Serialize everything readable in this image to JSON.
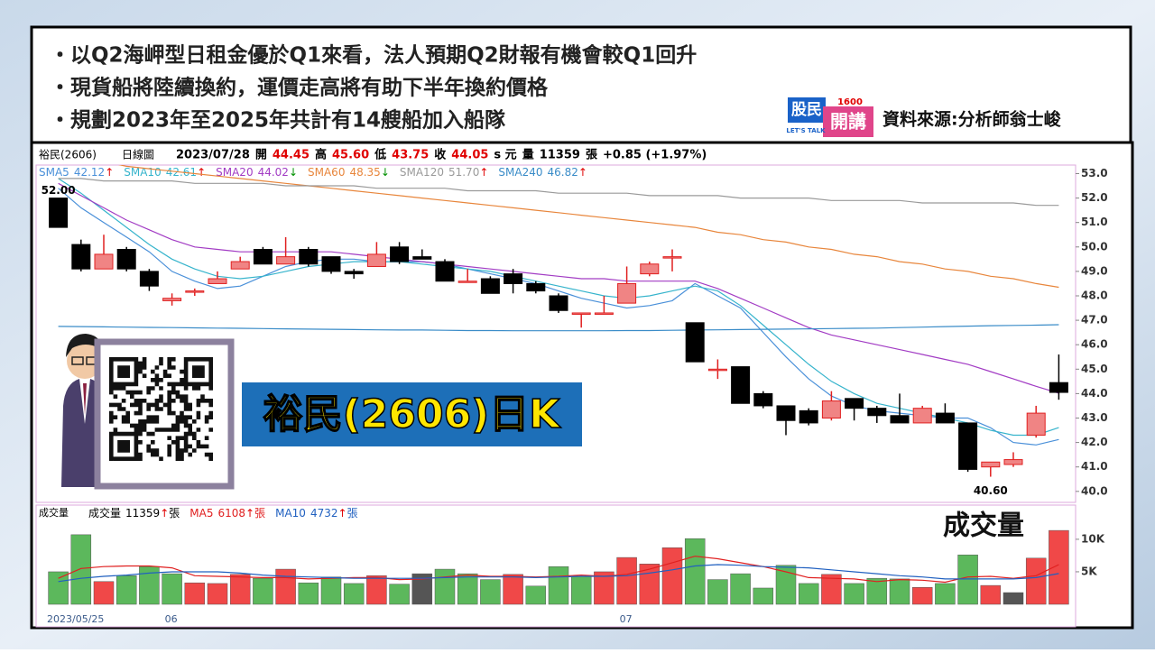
{
  "bullets": [
    "・以Q2海岬型日租金優於Q1來看，法人預期Q2財報有機會較Q1回升",
    "・現貨船將陸續換約，運價走高將有助下半年換約價格",
    "・規劃2023年至2025年共計有14艘船加入船隊"
  ],
  "logo": {
    "top": "股民",
    "bottom": "開講",
    "number": "1600",
    "tag": "LET'S TALK"
  },
  "source": "資料來源:分析師翁士峻",
  "banner": "裕民(2606)日K",
  "chart_data": [
    {
      "type": "candlestick",
      "title": "裕民(2606)",
      "subtitle": "日線圖",
      "header": [
        {
          "text": "2023/07/28",
          "color": "#000000"
        },
        {
          "text": "開",
          "color": "#000000"
        },
        {
          "text": "44.45",
          "color": "#e00000"
        },
        {
          "text": "高",
          "color": "#000000"
        },
        {
          "text": "45.60",
          "color": "#e00000"
        },
        {
          "text": "低",
          "color": "#000000"
        },
        {
          "text": "43.75",
          "color": "#e00000"
        },
        {
          "text": "收",
          "color": "#000000"
        },
        {
          "text": "44.05",
          "color": "#e00000"
        },
        {
          "text": "s 元",
          "color": "#000000"
        },
        {
          "text": "量",
          "color": "#000000"
        },
        {
          "text": "11359",
          "color": "#000000"
        },
        {
          "text": "張",
          "color": "#000000"
        },
        {
          "text": "+0.85 (+1.97%)",
          "color": "#000000"
        }
      ],
      "open": [
        52.0,
        50.1,
        49.1,
        49.9,
        49.0,
        47.8,
        48.2,
        48.5,
        49.1,
        49.9,
        49.3,
        49.9,
        49.6,
        49.0,
        49.2,
        50.0,
        49.6,
        49.4,
        48.6,
        48.7,
        48.9,
        48.5,
        48.0,
        47.3,
        47.3,
        47.7,
        48.9,
        49.6,
        46.9,
        45.0,
        45.1,
        44.0,
        43.5,
        43.3,
        43.0,
        43.8,
        43.4,
        43.1,
        42.8,
        43.2,
        42.8,
        41.0,
        41.1,
        42.3,
        44.45
      ],
      "high": [
        52.0,
        50.3,
        50.5,
        50.0,
        49.1,
        48.1,
        48.3,
        49.0,
        49.6,
        50.0,
        50.4,
        50.0,
        49.6,
        49.1,
        50.2,
        50.2,
        49.9,
        49.5,
        49.1,
        48.8,
        49.1,
        48.6,
        48.1,
        47.3,
        48.0,
        49.2,
        49.4,
        49.9,
        46.9,
        45.4,
        45.1,
        44.1,
        43.5,
        43.4,
        44.1,
        43.8,
        43.5,
        44.0,
        43.5,
        43.6,
        42.8,
        41.2,
        41.6,
        43.5,
        45.6
      ],
      "low": [
        50.8,
        49.0,
        49.1,
        49.0,
        48.2,
        47.6,
        48.0,
        48.5,
        49.1,
        49.3,
        49.3,
        49.2,
        48.9,
        48.7,
        49.2,
        49.3,
        49.5,
        48.6,
        48.6,
        48.1,
        48.1,
        48.1,
        47.3,
        46.7,
        47.3,
        47.7,
        48.8,
        49.0,
        45.3,
        44.6,
        43.6,
        43.4,
        42.3,
        42.7,
        42.9,
        42.9,
        42.8,
        42.8,
        42.8,
        42.8,
        40.8,
        40.6,
        41.0,
        42.2,
        43.75
      ],
      "close": [
        50.8,
        49.1,
        49.7,
        49.1,
        48.4,
        47.9,
        48.2,
        48.7,
        49.4,
        49.3,
        49.6,
        49.3,
        49.0,
        48.9,
        49.7,
        49.4,
        49.5,
        48.6,
        48.6,
        48.1,
        48.5,
        48.2,
        47.4,
        47.3,
        47.3,
        48.5,
        49.3,
        49.6,
        45.3,
        45.0,
        43.6,
        43.5,
        42.9,
        42.8,
        43.7,
        43.4,
        43.1,
        42.8,
        43.4,
        42.8,
        40.9,
        41.2,
        41.3,
        43.2,
        44.05
      ],
      "up_color": "#f08484",
      "up_edge": "#e02020",
      "down_color": "#000000",
      "down_edge": "#000000",
      "annotations": [
        {
          "value": 52.0,
          "label": "52.00"
        },
        {
          "value": 40.6,
          "label": "40.60"
        }
      ],
      "series": [
        {
          "name": "SMA5",
          "label": "42.12",
          "arrow": "↑",
          "arrow_color": "#e00000",
          "color": "#4a90d9",
          "values": [
            52.4,
            51.6,
            51.0,
            50.4,
            49.8,
            49.0,
            48.6,
            48.3,
            48.4,
            48.8,
            49.2,
            49.4,
            49.5,
            49.5,
            49.4,
            49.4,
            49.4,
            49.3,
            49.1,
            48.9,
            48.7,
            48.5,
            48.2,
            47.9,
            47.7,
            47.5,
            47.6,
            47.8,
            48.5,
            48.0,
            47.5,
            46.5,
            45.5,
            44.6,
            43.9,
            43.5,
            43.3,
            43.2,
            43.1,
            43.0,
            43.0,
            42.6,
            42.0,
            41.9,
            42.12
          ]
        },
        {
          "name": "SMA10",
          "label": "42.61",
          "arrow": "↑",
          "arrow_color": "#e00000",
          "color": "#36b4cc",
          "values": [
            52.8,
            52.2,
            51.5,
            50.8,
            50.1,
            49.5,
            49.1,
            48.8,
            48.7,
            48.8,
            49.0,
            49.2,
            49.3,
            49.4,
            49.4,
            49.4,
            49.3,
            49.2,
            49.1,
            49.0,
            48.8,
            48.6,
            48.4,
            48.2,
            48.0,
            47.9,
            48.0,
            48.2,
            48.4,
            48.2,
            47.6,
            46.8,
            46.0,
            45.2,
            44.5,
            44.0,
            43.6,
            43.4,
            43.2,
            43.0,
            42.8,
            42.5,
            42.3,
            42.3,
            42.61
          ]
        },
        {
          "name": "SMA20",
          "label": "44.02",
          "arrow": "↓",
          "arrow_color": "#009000",
          "color": "#a23cc4",
          "values": [
            52.6,
            52.1,
            51.6,
            51.1,
            50.7,
            50.3,
            50.0,
            49.9,
            49.8,
            49.8,
            49.8,
            49.8,
            49.8,
            49.7,
            49.6,
            49.5,
            49.4,
            49.3,
            49.2,
            49.1,
            49.0,
            48.9,
            48.8,
            48.7,
            48.7,
            48.6,
            48.6,
            48.6,
            48.6,
            48.3,
            47.9,
            47.5,
            47.1,
            46.7,
            46.4,
            46.2,
            46.0,
            45.8,
            45.6,
            45.4,
            45.2,
            44.9,
            44.6,
            44.3,
            44.02
          ]
        },
        {
          "name": "SMA60",
          "label": "48.35",
          "arrow": "↓",
          "arrow_color": "#009000",
          "color": "#e8863c",
          "values": [
            53.7,
            53.6,
            53.5,
            53.3,
            53.2,
            53.1,
            53.0,
            52.9,
            52.8,
            52.7,
            52.6,
            52.5,
            52.4,
            52.3,
            52.2,
            52.1,
            52.0,
            51.9,
            51.8,
            51.7,
            51.6,
            51.5,
            51.4,
            51.3,
            51.2,
            51.1,
            51.0,
            50.9,
            50.8,
            50.6,
            50.5,
            50.3,
            50.2,
            50.0,
            49.9,
            49.7,
            49.6,
            49.4,
            49.3,
            49.1,
            49.0,
            48.8,
            48.7,
            48.5,
            48.35
          ]
        },
        {
          "name": "SMA120",
          "label": "51.70",
          "arrow": "↑",
          "arrow_color": "#e00000",
          "color": "#9a9a9a",
          "values": [
            52.8,
            52.8,
            52.7,
            52.7,
            52.7,
            52.7,
            52.6,
            52.6,
            52.6,
            52.6,
            52.5,
            52.5,
            52.5,
            52.5,
            52.4,
            52.4,
            52.4,
            52.4,
            52.3,
            52.3,
            52.3,
            52.3,
            52.2,
            52.2,
            52.2,
            52.2,
            52.1,
            52.1,
            52.1,
            52.1,
            52.0,
            52.0,
            52.0,
            52.0,
            51.9,
            51.9,
            51.9,
            51.9,
            51.8,
            51.8,
            51.8,
            51.8,
            51.8,
            51.7,
            51.7
          ]
        },
        {
          "name": "SMA240",
          "label": "46.82",
          "arrow": "↑",
          "arrow_color": "#e00000",
          "color": "#3a8cc8",
          "values": [
            46.75,
            46.74,
            46.73,
            46.72,
            46.71,
            46.7,
            46.69,
            46.68,
            46.67,
            46.66,
            46.65,
            46.64,
            46.63,
            46.62,
            46.61,
            46.6,
            46.6,
            46.59,
            46.58,
            46.58,
            46.57,
            46.57,
            46.57,
            46.57,
            46.57,
            46.58,
            46.58,
            46.59,
            46.6,
            46.61,
            46.62,
            46.63,
            46.64,
            46.65,
            46.66,
            46.67,
            46.68,
            46.7,
            46.72,
            46.74,
            46.76,
            46.78,
            46.79,
            46.8,
            46.82
          ]
        }
      ],
      "ylim": [
        39.55,
        53.35
      ],
      "yticks": [
        {
          "value": 40,
          "label": "40.0"
        },
        {
          "value": 41,
          "label": "41.0"
        },
        {
          "value": 42,
          "label": "42.0"
        },
        {
          "value": 43,
          "label": "43.0"
        },
        {
          "value": 44,
          "label": "44.0"
        },
        {
          "value": 45,
          "label": "45.0"
        },
        {
          "value": 46,
          "label": "46.0"
        },
        {
          "value": 47,
          "label": "47.0"
        },
        {
          "value": 48,
          "label": "48.0"
        },
        {
          "value": 49,
          "label": "49.0"
        },
        {
          "value": 50,
          "label": "50.0"
        },
        {
          "value": 51,
          "label": "51.0"
        },
        {
          "value": 52,
          "label": "52.0"
        },
        {
          "value": 53,
          "label": "53.0"
        }
      ]
    },
    {
      "type": "bar",
      "title": "成交量",
      "annotation": "成交量",
      "legend": [
        {
          "name": "成交量",
          "label": "11359",
          "arrow": "↑",
          "arrow_color": "#e00000",
          "unit": "張",
          "color": "#000000"
        },
        {
          "name": "MA5",
          "label": "6108",
          "arrow": "↑",
          "arrow_color": "#e00000",
          "unit": "張",
          "color": "#e02020"
        },
        {
          "name": "MA10",
          "label": "4732",
          "arrow": "↑",
          "arrow_color": "#e00000",
          "unit": "張",
          "color": "#2060c0"
        }
      ],
      "categories": [
        "2023/05/25",
        null,
        null,
        null,
        null,
        "06",
        null,
        null,
        null,
        null,
        null,
        null,
        null,
        null,
        null,
        null,
        null,
        null,
        null,
        null,
        null,
        null,
        null,
        null,
        null,
        "07",
        null,
        null,
        null,
        null,
        null,
        null,
        null,
        null,
        null,
        null,
        null,
        null,
        null,
        null,
        null,
        null,
        null,
        null,
        null
      ],
      "values": [
        5000,
        10700,
        3500,
        4400,
        5800,
        4700,
        3300,
        3200,
        4600,
        4000,
        5400,
        3300,
        4200,
        3200,
        4400,
        3100,
        4700,
        5400,
        4700,
        3800,
        4600,
        2800,
        5800,
        4300,
        5000,
        7200,
        6200,
        8700,
        10100,
        3800,
        4700,
        2500,
        6000,
        3200,
        4600,
        3200,
        4000,
        3900,
        2600,
        3200,
        7600,
        2900,
        1800,
        7100,
        11359
      ],
      "bar_colors": [
        "#5cb85c",
        "#5cb85c",
        "#f04848",
        "#5cb85c",
        "#5cb85c",
        "#5cb85c",
        "#f04848",
        "#f04848",
        "#f04848",
        "#5cb85c",
        "#f04848",
        "#5cb85c",
        "#5cb85c",
        "#5cb85c",
        "#f04848",
        "#5cb85c",
        "#555555",
        "#5cb85c",
        "#5cb85c",
        "#5cb85c",
        "#f04848",
        "#5cb85c",
        "#5cb85c",
        "#5cb85c",
        "#f04848",
        "#f04848",
        "#f04848",
        "#f04848",
        "#5cb85c",
        "#5cb85c",
        "#5cb85c",
        "#5cb85c",
        "#5cb85c",
        "#5cb85c",
        "#f04848",
        "#5cb85c",
        "#5cb85c",
        "#5cb85c",
        "#f04848",
        "#5cb85c",
        "#5cb85c",
        "#f04848",
        "#555555",
        "#f04848",
        "#f04848"
      ],
      "series": [
        {
          "name": "MA5",
          "color": "#e02020",
          "values": [
            4000,
            5500,
            5800,
            5900,
            5900,
            5600,
            4400,
            4300,
            4200,
            4100,
            4100,
            3900,
            4000,
            4100,
            4100,
            3800,
            3900,
            4200,
            4500,
            4300,
            4300,
            4200,
            4300,
            4500,
            4300,
            4600,
            5400,
            6400,
            7400,
            7000,
            6400,
            5800,
            5000,
            4100,
            4000,
            3900,
            3500,
            3800,
            3700,
            3400,
            4200,
            4300,
            4000,
            4400,
            6108
          ]
        },
        {
          "name": "MA10",
          "color": "#2060c0",
          "values": [
            3500,
            4000,
            4300,
            4500,
            4800,
            5000,
            5000,
            5000,
            4800,
            4500,
            4300,
            4200,
            4100,
            4000,
            4000,
            4000,
            4000,
            4100,
            4200,
            4200,
            4200,
            4100,
            4200,
            4300,
            4300,
            4400,
            4800,
            5300,
            5900,
            6100,
            6000,
            5800,
            5700,
            5600,
            5300,
            5000,
            4700,
            4400,
            4200,
            3900,
            3900,
            3900,
            3900,
            4100,
            4732
          ]
        }
      ],
      "ylim": [
        0,
        12900
      ],
      "yticks": [
        {
          "value": 5000,
          "label": "5K"
        },
        {
          "value": 10000,
          "label": "10K"
        }
      ]
    }
  ]
}
